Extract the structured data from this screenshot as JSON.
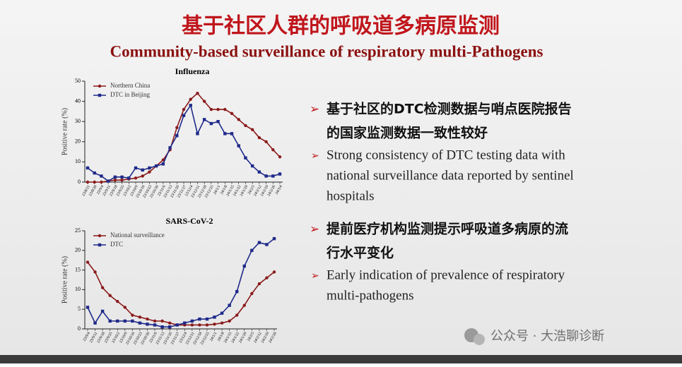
{
  "title": "基于社区人群的呼吸道多病原监测",
  "subtitle": "Community-based surveillance of respiratory multi-Pathogens",
  "bullets": [
    {
      "heading": [
        "基于社区的DTC检测数据与哨点医院报告",
        "的国家监测数据一致性较好"
      ],
      "body": [
        "Strong consistency of DTC testing data with",
        "national surveillance data reported by sentinel",
        "hospitals"
      ]
    },
    {
      "heading": [
        "提前医疗机构监测提示呼吸道多病原的流",
        "行水平变化"
      ],
      "body": [
        "Early indication of prevalence of respiratory",
        "multi-pathogens"
      ]
    }
  ],
  "watermark": "公众号 · 大浩聊诊断",
  "chart_data": [
    {
      "type": "line",
      "title": "Influenza",
      "y_label": "Positive rate (%)",
      "categories": [
        "23/8/21",
        "23/8/28",
        "23/9/4",
        "23/9/11",
        "23/9/18",
        "23/9/25",
        "23/10/2",
        "23/10/9",
        "23/10/16",
        "23/10/23",
        "23/10/30",
        "23/11/6",
        "23/11/13",
        "23/11/20",
        "23/11/27",
        "23/12/4",
        "23/12/11",
        "23/12/18",
        "23/12/25",
        "24/1/1",
        "24/1/8",
        "24/1/15",
        "24/1/22",
        "24/1/29",
        "24/2/5",
        "24/2/12",
        "24/2/19",
        "24/2/26",
        "24/3/4"
      ],
      "series": [
        {
          "name": "Northern China",
          "color": "#8b1a1a",
          "marker": "circle",
          "values": [
            0,
            0,
            0,
            0.5,
            1,
            1,
            1.5,
            2,
            3,
            5,
            8,
            11,
            16,
            27,
            36,
            41,
            44,
            40,
            36,
            36,
            36,
            34,
            31,
            28,
            26,
            22,
            20,
            16,
            12.5
          ]
        },
        {
          "name": "DTC in Beijing",
          "color": "#1f2a8a",
          "marker": "square",
          "values": [
            7,
            4.5,
            3,
            0.5,
            2.5,
            2.5,
            2,
            7,
            6,
            7,
            8,
            9,
            17,
            23,
            33,
            38,
            24,
            31,
            29,
            30,
            24,
            24,
            18,
            12,
            8,
            5,
            3,
            3,
            4
          ]
        }
      ],
      "ylim": [
        0,
        50
      ],
      "yticks": [
        0,
        10,
        20,
        30,
        40,
        50
      ]
    },
    {
      "type": "line",
      "title": "SARS-CoV-2",
      "y_label": "Positive rate (%)",
      "categories": [
        "23/9/4",
        "23/9/11",
        "23/9/18",
        "23/9/25",
        "23/10/2",
        "23/10/9",
        "23/10/16",
        "23/10/23",
        "23/10/30",
        "23/11/6",
        "23/11/13",
        "23/11/20",
        "23/11/27",
        "23/12/4",
        "23/12/11",
        "23/12/18",
        "23/12/25",
        "24/1/1",
        "24/1/8",
        "24/1/15",
        "24/1/22",
        "24/1/29",
        "24/2/5",
        "24/2/12",
        "24/2/19",
        "24/2/26"
      ],
      "series": [
        {
          "name": "National surveillance",
          "color": "#8b1a1a",
          "marker": "circle",
          "values": [
            17,
            14.5,
            10.5,
            8.5,
            7,
            5.5,
            3.5,
            3,
            2.5,
            2,
            2,
            1.5,
            1,
            1,
            1,
            1,
            1,
            1.2,
            1.5,
            2,
            3.5,
            6,
            9,
            11.5,
            13,
            14.5
          ]
        },
        {
          "name": "DTC",
          "color": "#1f2a8a",
          "marker": "square",
          "values": [
            5.5,
            1.5,
            4.5,
            2,
            2,
            2,
            2,
            1.5,
            1.2,
            1,
            0.5,
            0.5,
            1,
            1.5,
            2,
            2.5,
            2.5,
            3,
            4,
            6,
            9.5,
            16,
            20,
            22,
            21.5,
            23
          ]
        }
      ],
      "ylim": [
        0,
        25
      ],
      "yticks": [
        0,
        5,
        10,
        15,
        20,
        25
      ]
    }
  ]
}
